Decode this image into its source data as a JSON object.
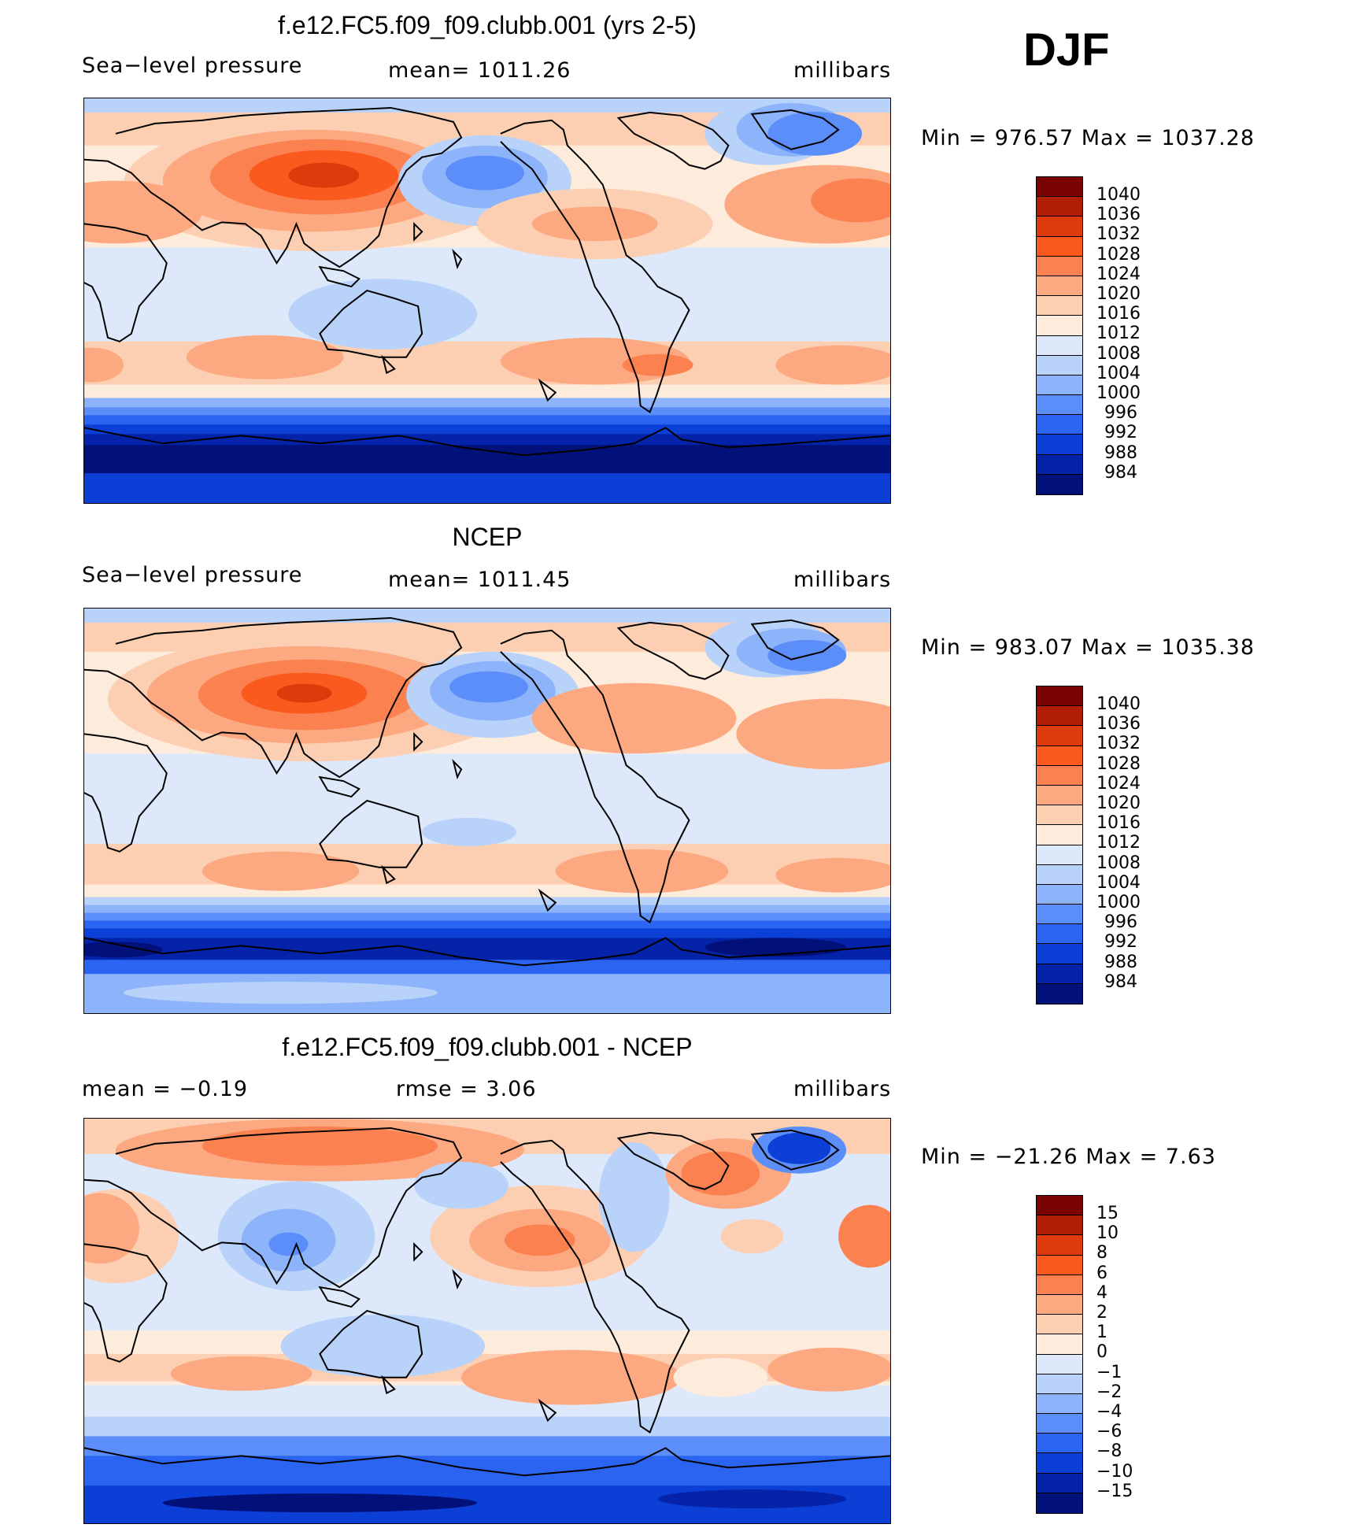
{
  "season": "DJF",
  "panels": [
    {
      "title": "f.e12.FC5.f09_f09.clubb.001 (yrs 2-5)",
      "left_label": "Sea−level pressure",
      "center_label": "mean=  1011.26",
      "right_label": "millibars",
      "minmax": "Min  =  976.57  Max  =  1037.28",
      "colorbar_labels": [
        "1040",
        "1036",
        "1032",
        "1028",
        "1024",
        "1020",
        "1016",
        "1012",
        "1008",
        "1004",
        "1000",
        "996",
        "992",
        "988",
        "984"
      ]
    },
    {
      "title": "NCEP",
      "left_label": "Sea−level pressure",
      "center_label": "mean=  1011.45",
      "right_label": "millibars",
      "minmax": "Min  =  983.07  Max  =  1035.38",
      "colorbar_labels": [
        "1040",
        "1036",
        "1032",
        "1028",
        "1024",
        "1020",
        "1016",
        "1012",
        "1008",
        "1004",
        "1000",
        "996",
        "992",
        "988",
        "984"
      ]
    },
    {
      "title": "f.e12.FC5.f09_f09.clubb.001 - NCEP",
      "left_label": "mean  =    −0.19",
      "center_label": "rmse  =     3.06",
      "right_label": "millibars",
      "minmax": "Min  =  −21.26  Max  =      7.63",
      "colorbar_labels": [
        "15",
        "10",
        "8",
        "6",
        "4",
        "2",
        "1",
        "0",
        "−1",
        "−2",
        "−4",
        "−6",
        "−8",
        "−10",
        "−15"
      ]
    }
  ],
  "colors": {
    "abs_scale": [
      "#7a0403",
      "#b21e05",
      "#de3b0c",
      "#fa5a1e",
      "#fc8150",
      "#fca880",
      "#fdcfb2",
      "#fdebdc",
      "#dde9fa",
      "#b8d2fa",
      "#8db4fb",
      "#5b8ef9",
      "#2b64f1",
      "#0b3fd6",
      "#0523a8",
      "#021079"
    ],
    "diff_scale": [
      "#7a0403",
      "#b21e05",
      "#de3b0c",
      "#fa5a1e",
      "#fc8150",
      "#fca880",
      "#fdcfb2",
      "#fdebdc",
      "#dde9fa",
      "#b8d2fa",
      "#8db4fb",
      "#5b8ef9",
      "#2b64f1",
      "#0b3fd6",
      "#0523a8",
      "#021079"
    ]
  }
}
